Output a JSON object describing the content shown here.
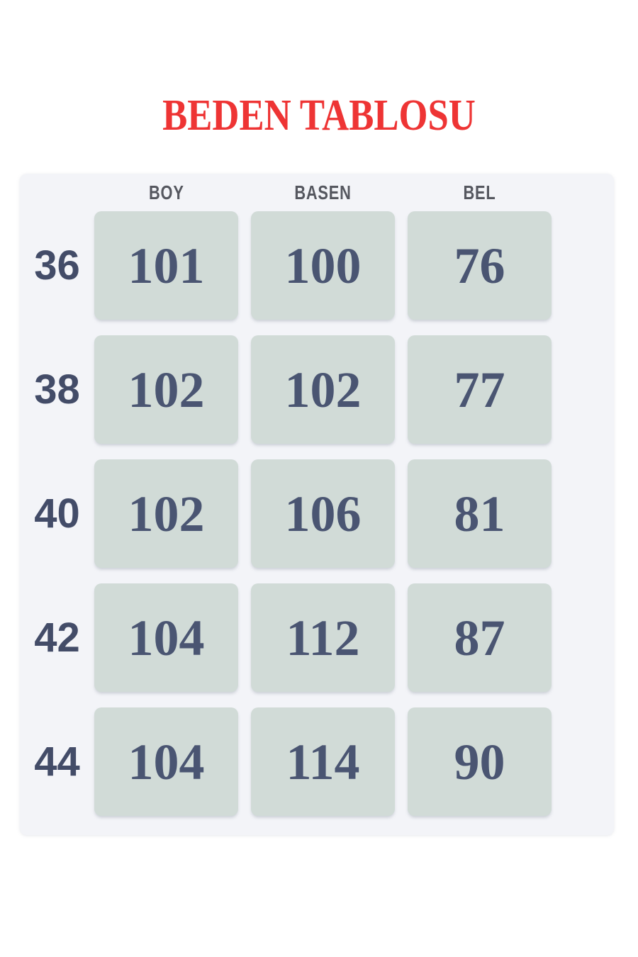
{
  "title": "BEDEN TABLOSU",
  "colors": {
    "title_red": "#ee3434",
    "page_bg": "#ffffff",
    "panel_bg": "#f3f4f8",
    "cell_bg": "#d1dbd7",
    "value_text": "#4a5572",
    "size_label_text": "#434c68",
    "header_text": "#55575f"
  },
  "chart_data": {
    "type": "table",
    "title": "BEDEN TABLOSU",
    "columns": [
      "BOY",
      "BASEN",
      "BEL"
    ],
    "row_label_meaning": "size",
    "rows": [
      {
        "label": "36",
        "values": [
          "101",
          "100",
          "76"
        ]
      },
      {
        "label": "38",
        "values": [
          "102",
          "102",
          "77"
        ]
      },
      {
        "label": "40",
        "values": [
          "102",
          "106",
          "81"
        ]
      },
      {
        "label": "42",
        "values": [
          "104",
          "112",
          "87"
        ]
      },
      {
        "label": "44",
        "values": [
          "104",
          "114",
          "90"
        ]
      }
    ]
  }
}
